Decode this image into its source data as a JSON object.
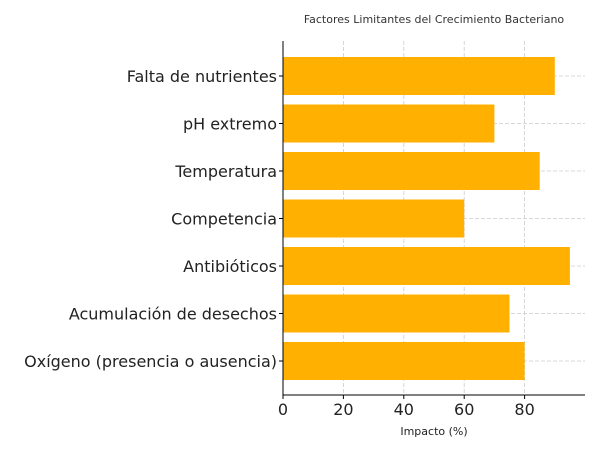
{
  "chart_data": {
    "type": "bar",
    "orientation": "horizontal",
    "title": "Factores Limitantes del Crecimiento Bacteriano",
    "xlabel": "Impacto (%)",
    "ylabel": "",
    "categories": [
      "Falta de nutrientes",
      "pH extremo",
      "Temperatura",
      "Competencia",
      "Antibióticos",
      "Acumulación de desechos",
      "Oxígeno (presencia o ausencia)"
    ],
    "values": [
      90,
      70,
      85,
      60,
      95,
      75,
      80
    ],
    "xlim": [
      0,
      100
    ],
    "xticks": [
      0,
      20,
      40,
      60,
      80
    ],
    "grid": true,
    "bar_color": "#ffb000"
  }
}
